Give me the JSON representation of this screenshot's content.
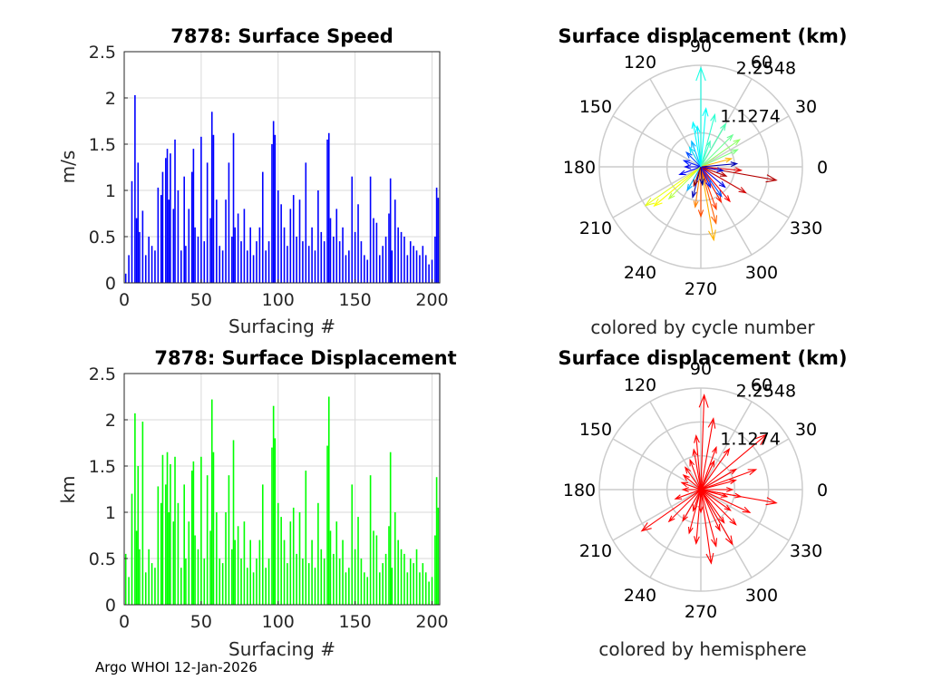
{
  "footer": "Argo WHOI 12-Jan-2026",
  "colors": {
    "speed_bar": "#0000ff",
    "displacement_bar": "#00ff00",
    "hemisphere_arrow": "#ff0000",
    "grid": "#d9d9d9",
    "polar_grid": "#cccccc",
    "axis": "#262626"
  },
  "chart_data": [
    {
      "id": "speed",
      "type": "bar",
      "title": "7878: Surface Speed",
      "xlabel": "Surfacing #",
      "ylabel": "m/s",
      "xlim": [
        0,
        205
      ],
      "ylim": [
        0,
        2.5
      ],
      "xticks": [
        0,
        50,
        100,
        150,
        200
      ],
      "yticks": [
        0,
        0.5,
        1,
        1.5,
        2,
        2.5
      ],
      "ytick_labels": [
        "0",
        "0.5",
        "1",
        "1.5",
        "2",
        "2.5"
      ],
      "x": [
        1,
        3,
        5,
        7,
        8,
        9,
        10,
        12,
        14,
        16,
        18,
        20,
        22,
        24,
        25,
        27,
        28,
        29,
        30,
        32,
        33,
        35,
        37,
        39,
        40,
        42,
        44,
        45,
        46,
        48,
        50,
        52,
        54,
        56,
        57,
        58,
        60,
        62,
        64,
        66,
        68,
        70,
        71,
        72,
        74,
        76,
        78,
        80,
        82,
        84,
        86,
        88,
        90,
        92,
        94,
        96,
        97,
        98,
        100,
        102,
        104,
        106,
        108,
        110,
        112,
        114,
        116,
        118,
        120,
        122,
        124,
        126,
        128,
        130,
        132,
        133,
        134,
        136,
        138,
        140,
        142,
        144,
        146,
        148,
        150,
        152,
        154,
        156,
        158,
        160,
        162,
        164,
        166,
        168,
        170,
        172,
        173,
        174,
        176,
        178,
        180,
        182,
        184,
        186,
        188,
        190,
        192,
        194,
        196,
        198,
        200,
        202,
        203,
        204
      ],
      "values": [
        0.1,
        0.3,
        1.1,
        2.03,
        0.7,
        1.3,
        0.55,
        0.78,
        0.3,
        0.5,
        0.4,
        0.35,
        1.03,
        0.95,
        1.2,
        1.35,
        1.45,
        0.9,
        1.4,
        0.8,
        1.55,
        1.0,
        0.35,
        1.15,
        0.4,
        0.8,
        1.2,
        1.45,
        0.6,
        0.5,
        1.58,
        0.45,
        1.3,
        0.7,
        1.85,
        1.6,
        0.9,
        0.4,
        0.35,
        0.9,
        1.3,
        0.5,
        1.62,
        0.6,
        0.75,
        0.45,
        0.8,
        0.35,
        0.6,
        0.3,
        0.45,
        0.6,
        1.2,
        0.35,
        0.45,
        1.5,
        1.75,
        1.6,
        1.0,
        0.85,
        0.6,
        0.4,
        0.8,
        0.95,
        0.5,
        0.9,
        0.45,
        1.3,
        0.4,
        0.6,
        0.35,
        1.0,
        0.55,
        0.45,
        1.55,
        1.62,
        0.7,
        0.5,
        0.8,
        0.45,
        0.6,
        0.3,
        0.35,
        1.15,
        0.55,
        0.85,
        0.45,
        0.3,
        0.25,
        1.15,
        0.7,
        0.65,
        0.3,
        0.4,
        0.5,
        0.75,
        1.13,
        0.35,
        0.9,
        0.6,
        0.55,
        0.5,
        0.3,
        0.45,
        0.4,
        0.35,
        0.3,
        0.4,
        0.3,
        0.2,
        0.25,
        0.5,
        1.03,
        0.92
      ]
    },
    {
      "id": "displacement",
      "type": "bar",
      "title": "7878: Surface Displacement",
      "xlabel": "Surfacing #",
      "ylabel": "km",
      "xlim": [
        0,
        205
      ],
      "ylim": [
        0,
        2.5
      ],
      "xticks": [
        0,
        50,
        100,
        150,
        200
      ],
      "yticks": [
        0,
        0.5,
        1,
        1.5,
        2,
        2.5
      ],
      "ytick_labels": [
        "0",
        "0.5",
        "1",
        "1.5",
        "2",
        "2.5"
      ],
      "x": [
        1,
        3,
        5,
        7,
        8,
        9,
        10,
        12,
        14,
        16,
        18,
        20,
        22,
        24,
        25,
        27,
        28,
        29,
        30,
        32,
        33,
        35,
        37,
        39,
        40,
        42,
        44,
        45,
        46,
        48,
        50,
        52,
        54,
        56,
        57,
        58,
        60,
        62,
        64,
        66,
        68,
        70,
        71,
        72,
        74,
        76,
        78,
        80,
        82,
        84,
        86,
        88,
        90,
        92,
        94,
        96,
        97,
        98,
        100,
        102,
        104,
        106,
        108,
        110,
        112,
        114,
        116,
        118,
        120,
        122,
        124,
        126,
        128,
        130,
        132,
        133,
        134,
        136,
        138,
        140,
        142,
        144,
        146,
        148,
        150,
        152,
        154,
        156,
        158,
        160,
        162,
        164,
        166,
        168,
        170,
        172,
        173,
        174,
        176,
        178,
        180,
        182,
        184,
        186,
        188,
        190,
        192,
        194,
        196,
        198,
        200,
        202,
        203,
        204
      ],
      "values": [
        0.55,
        0.3,
        1.2,
        2.07,
        0.8,
        1.5,
        0.6,
        1.98,
        0.35,
        0.6,
        0.45,
        0.4,
        1.28,
        1.1,
        1.62,
        1.3,
        1.65,
        1.0,
        1.52,
        0.9,
        1.6,
        1.1,
        0.4,
        1.3,
        0.5,
        0.9,
        1.45,
        1.55,
        0.75,
        0.6,
        1.6,
        0.5,
        1.4,
        0.8,
        2.22,
        1.65,
        1.0,
        0.5,
        0.45,
        1.0,
        1.4,
        0.6,
        1.78,
        0.7,
        0.85,
        0.5,
        0.9,
        0.4,
        0.7,
        0.35,
        0.5,
        0.7,
        1.3,
        0.4,
        0.5,
        1.7,
        2.15,
        1.8,
        1.1,
        0.95,
        0.7,
        0.45,
        0.9,
        1.05,
        0.55,
        1.0,
        0.5,
        1.45,
        0.45,
        0.7,
        0.4,
        1.1,
        0.6,
        0.5,
        1.72,
        2.25,
        0.8,
        0.55,
        0.9,
        0.5,
        0.7,
        0.35,
        0.4,
        1.3,
        0.6,
        0.95,
        0.5,
        0.35,
        0.3,
        1.4,
        0.8,
        0.75,
        0.35,
        0.45,
        0.55,
        0.85,
        1.65,
        0.4,
        1.0,
        0.7,
        0.6,
        0.55,
        0.35,
        0.5,
        0.45,
        0.6,
        0.35,
        0.45,
        0.35,
        0.25,
        0.3,
        0.75,
        1.38,
        1.05
      ]
    },
    {
      "id": "polar-cycle",
      "type": "polar-quiver",
      "title": "Surface displacement (km)",
      "caption": "colored by cycle number",
      "rmax": 2.2548,
      "rticks": [
        1.1274,
        2.2548
      ],
      "rtick_labels": [
        "1.1274",
        "2.2548"
      ],
      "angle_ticks": [
        0,
        30,
        60,
        90,
        120,
        150,
        180,
        210,
        240,
        270,
        300,
        330
      ],
      "color_mode": "cycle number (blue = early, red = late)",
      "vectors": [
        {
          "angle": 90,
          "r": 2.2,
          "c": 0.4
        },
        {
          "angle": 85,
          "r": 1.3,
          "c": 0.38
        },
        {
          "angle": 95,
          "r": 0.9,
          "c": 0.36
        },
        {
          "angle": 75,
          "r": 1.2,
          "c": 0.42
        },
        {
          "angle": 60,
          "r": 1.1,
          "c": 0.45
        },
        {
          "angle": 45,
          "r": 1.0,
          "c": 0.48
        },
        {
          "angle": 35,
          "r": 1.05,
          "c": 0.52
        },
        {
          "angle": 25,
          "r": 0.9,
          "c": 0.5
        },
        {
          "angle": 15,
          "r": 0.7,
          "c": 0.7
        },
        {
          "angle": 5,
          "r": 0.8,
          "c": 0.05
        },
        {
          "angle": -10,
          "r": 1.7,
          "c": 0.95
        },
        {
          "angle": -5,
          "r": 0.9,
          "c": 0.9
        },
        {
          "angle": 110,
          "r": 0.6,
          "c": 0.3
        },
        {
          "angle": 120,
          "r": 0.5,
          "c": 0.35
        },
        {
          "angle": 135,
          "r": 0.45,
          "c": 0.2
        },
        {
          "angle": 160,
          "r": 0.4,
          "c": 0.15
        },
        {
          "angle": 180,
          "r": 0.35,
          "c": 0.1
        },
        {
          "angle": 200,
          "r": 0.5,
          "c": 0.12
        },
        {
          "angle": 215,
          "r": 1.5,
          "c": 0.6
        },
        {
          "angle": 220,
          "r": 1.35,
          "c": 0.62
        },
        {
          "angle": 225,
          "r": 1.0,
          "c": 0.55
        },
        {
          "angle": 240,
          "r": 0.6,
          "c": 0.3
        },
        {
          "angle": 255,
          "r": 0.7,
          "c": 0.05
        },
        {
          "angle": 262,
          "r": 0.9,
          "c": 0.75
        },
        {
          "angle": 270,
          "r": 1.1,
          "c": 0.8
        },
        {
          "angle": 280,
          "r": 1.65,
          "c": 0.7
        },
        {
          "angle": 285,
          "r": 1.3,
          "c": 0.78
        },
        {
          "angle": 290,
          "r": 1.0,
          "c": 0.82
        },
        {
          "angle": 300,
          "r": 0.9,
          "c": 0.85
        },
        {
          "angle": 305,
          "r": 0.8,
          "c": 0.2
        },
        {
          "angle": 310,
          "r": 1.0,
          "c": 0.88
        },
        {
          "angle": 320,
          "r": 0.7,
          "c": 0.1
        },
        {
          "angle": 330,
          "r": 1.15,
          "c": 0.92
        },
        {
          "angle": 340,
          "r": 0.6,
          "c": 0.95
        },
        {
          "angle": 350,
          "r": 0.5,
          "c": 0.08
        },
        {
          "angle": 295,
          "r": 0.5,
          "c": 0.15
        },
        {
          "angle": 275,
          "r": 0.4,
          "c": 0.02
        },
        {
          "angle": 250,
          "r": 0.45,
          "c": 0.98
        },
        {
          "angle": 70,
          "r": 0.6,
          "c": 0.44
        },
        {
          "angle": 100,
          "r": 1.0,
          "c": 0.37
        }
      ]
    },
    {
      "id": "polar-hemisphere",
      "type": "polar-quiver",
      "title": "Surface displacement (km)",
      "caption": "colored by hemisphere",
      "rmax": 2.2548,
      "rticks": [
        1.1274,
        2.2548
      ],
      "rtick_labels": [
        "1.1274",
        "2.2548"
      ],
      "angle_ticks": [
        0,
        30,
        60,
        90,
        120,
        150,
        180,
        210,
        240,
        270,
        300,
        330
      ],
      "color_mode": "hemisphere (all red)",
      "vectors": [
        {
          "angle": 88,
          "r": 2.1,
          "c": 0
        },
        {
          "angle": 80,
          "r": 1.6,
          "c": 0
        },
        {
          "angle": 95,
          "r": 1.2,
          "c": 0
        },
        {
          "angle": 70,
          "r": 1.0,
          "c": 0
        },
        {
          "angle": 55,
          "r": 1.1,
          "c": 0
        },
        {
          "angle": 40,
          "r": 1.9,
          "c": 0
        },
        {
          "angle": 30,
          "r": 0.9,
          "c": 0
        },
        {
          "angle": 15,
          "r": 0.8,
          "c": 0
        },
        {
          "angle": 0,
          "r": 0.7,
          "c": 0
        },
        {
          "angle": -10,
          "r": 1.7,
          "c": 0
        },
        {
          "angle": 110,
          "r": 0.7,
          "c": 0
        },
        {
          "angle": 125,
          "r": 0.6,
          "c": 0
        },
        {
          "angle": 140,
          "r": 0.5,
          "c": 0
        },
        {
          "angle": 160,
          "r": 0.45,
          "c": 0
        },
        {
          "angle": 180,
          "r": 0.4,
          "c": 0
        },
        {
          "angle": 200,
          "r": 0.6,
          "c": 0
        },
        {
          "angle": 215,
          "r": 1.6,
          "c": 0
        },
        {
          "angle": 225,
          "r": 1.0,
          "c": 0
        },
        {
          "angle": 240,
          "r": 0.8,
          "c": 0
        },
        {
          "angle": 255,
          "r": 1.0,
          "c": 0
        },
        {
          "angle": 265,
          "r": 1.2,
          "c": 0
        },
        {
          "angle": 278,
          "r": 1.65,
          "c": 0
        },
        {
          "angle": 285,
          "r": 1.3,
          "c": 0
        },
        {
          "angle": 295,
          "r": 1.0,
          "c": 0
        },
        {
          "angle": 305,
          "r": 0.9,
          "c": 0
        },
        {
          "angle": 315,
          "r": 1.1,
          "c": 0
        },
        {
          "angle": 325,
          "r": 0.8,
          "c": 0
        },
        {
          "angle": 335,
          "r": 1.2,
          "c": 0
        },
        {
          "angle": 345,
          "r": 0.6,
          "c": 0
        },
        {
          "angle": 350,
          "r": 0.9,
          "c": 0
        },
        {
          "angle": 270,
          "r": 0.5,
          "c": 0
        },
        {
          "angle": 250,
          "r": 0.5,
          "c": 0
        },
        {
          "angle": 65,
          "r": 0.7,
          "c": 0
        },
        {
          "angle": 100,
          "r": 0.9,
          "c": 0
        },
        {
          "angle": 20,
          "r": 1.3,
          "c": 0
        },
        {
          "angle": 300,
          "r": 1.4,
          "c": 0
        }
      ]
    }
  ]
}
